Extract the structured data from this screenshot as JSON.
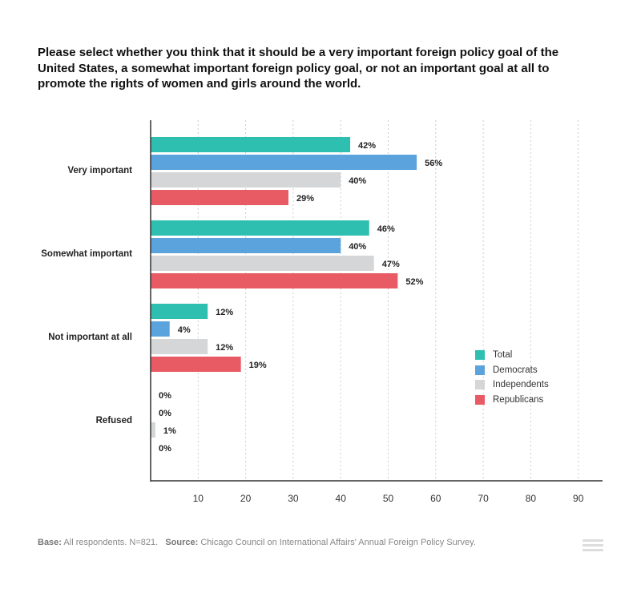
{
  "chart_data": {
    "type": "bar",
    "orientation": "horizontal",
    "title": "Please select whether you think that it should be a very important foreign policy goal of the United States, a somewhat important foreign policy goal, or not an important goal at all to promote the rights of women and girls around the world.",
    "categories": [
      "Very important",
      "Somewhat important",
      "Not important at all",
      "Refused"
    ],
    "series": [
      {
        "name": "Total",
        "color": "#2fbfb0",
        "values": [
          42,
          46,
          12,
          0
        ]
      },
      {
        "name": "Democrats",
        "color": "#5ba3dc",
        "values": [
          56,
          40,
          4,
          0
        ]
      },
      {
        "name": "Independents",
        "color": "#d5d6d8",
        "values": [
          40,
          47,
          12,
          1
        ]
      },
      {
        "name": "Republicans",
        "color": "#e85b64",
        "values": [
          29,
          52,
          19,
          0
        ]
      }
    ],
    "xticks": [
      10,
      20,
      30,
      40,
      50,
      60,
      70,
      80,
      90
    ],
    "xlim": [
      0,
      95
    ],
    "value_suffix": "%",
    "grid": true,
    "legend_position": "right"
  },
  "footer": {
    "base_label": "Base:",
    "base_text": "All respondents. N=821.",
    "source_label": "Source:",
    "source_text": "Chicago Council on International Affairs' Annual Foreign Policy Survey."
  }
}
